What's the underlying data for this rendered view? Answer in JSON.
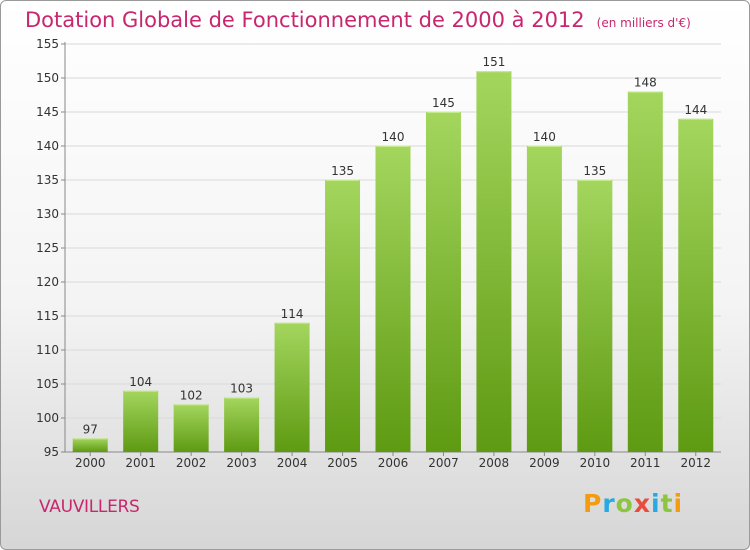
{
  "title": "Dotation Globale de Fonctionnement de 2000 à 2012",
  "unit": "(en milliers d'€)",
  "place": "VAUVILLERS",
  "logo": {
    "text": "Proxiti",
    "letters": [
      {
        "char": "P",
        "color": "#f39c12"
      },
      {
        "char": "r",
        "color": "#27a9e1"
      },
      {
        "char": "o",
        "color": "#8cc63f"
      },
      {
        "char": "x",
        "color": "#e94b3c"
      },
      {
        "char": "i",
        "color": "#27a9e1"
      },
      {
        "char": "t",
        "color": "#8cc63f"
      },
      {
        "char": "i",
        "color": "#f39c12"
      }
    ]
  },
  "colors": {
    "title": "#c8266e",
    "bar_light": "#a4d65e",
    "bar_dark": "#5e9a12",
    "grid": "#d9d9d9",
    "axis": "#888888"
  },
  "chart_data": {
    "type": "bar",
    "categories": [
      "2000",
      "2001",
      "2002",
      "2003",
      "2004",
      "2005",
      "2006",
      "2007",
      "2008",
      "2009",
      "2010",
      "2011",
      "2012"
    ],
    "values": [
      97,
      104,
      102,
      103,
      114,
      135,
      140,
      145,
      151,
      140,
      135,
      148,
      144
    ],
    "ylim": [
      95,
      155
    ],
    "yticks": [
      95,
      100,
      105,
      110,
      115,
      120,
      125,
      130,
      135,
      140,
      145,
      150,
      155
    ],
    "grid": true,
    "data_labels": true
  }
}
